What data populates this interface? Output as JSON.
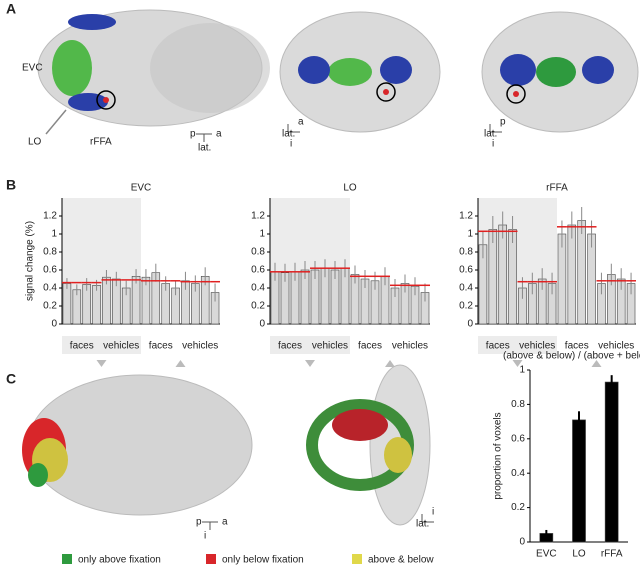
{
  "panel_labels": [
    "A",
    "B",
    "C"
  ],
  "panel_a": {
    "region_labels": [
      "EVC",
      "LO",
      "rFFA"
    ],
    "orientations": [
      [
        "p",
        "a",
        "lat."
      ],
      [
        "lat.",
        "a",
        "i"
      ],
      [
        "lat.",
        "p",
        "i"
      ]
    ]
  },
  "panel_c": {
    "orientations": [
      [
        "p",
        "a",
        "i"
      ],
      [
        "lat.",
        "i"
      ]
    ],
    "legend": [
      {
        "label": "only above fixation",
        "color": "#2e9a3e"
      },
      {
        "label": "only below fixation",
        "color": "#d8262a"
      },
      {
        "label": "above & below",
        "color": "#e0d84a"
      }
    ]
  },
  "chart_data": [
    {
      "type": "bar",
      "title": "EVC",
      "ylabel": "signal change (%)",
      "group_labels": [
        "faces",
        "vehicles",
        "faces",
        "vehicles"
      ],
      "values": [
        0.45,
        0.38,
        0.44,
        0.43,
        0.52,
        0.5,
        0.4,
        0.53,
        0.52,
        0.57,
        0.45,
        0.4,
        0.48,
        0.45,
        0.53,
        0.35
      ],
      "errors": [
        0.06,
        0.06,
        0.07,
        0.06,
        0.08,
        0.08,
        0.08,
        0.08,
        0.09,
        0.1,
        0.08,
        0.08,
        0.1,
        0.09,
        0.1,
        0.1
      ],
      "fit": [
        0.46,
        0.46,
        0.46,
        0.46,
        0.49,
        0.49,
        0.49,
        0.49,
        0.48,
        0.48,
        0.48,
        0.48,
        0.47,
        0.47,
        0.47,
        0.47
      ],
      "color": "#d9d9d9",
      "fit_color": "#e02020",
      "ylim": [
        0,
        1.4
      ],
      "yticks": [
        0,
        0.2,
        0.4,
        0.6,
        0.8,
        1,
        1.2
      ]
    },
    {
      "type": "bar",
      "title": "LO",
      "group_labels": [
        "faces",
        "vehicles",
        "faces",
        "vehicles"
      ],
      "values": [
        0.58,
        0.57,
        0.58,
        0.6,
        0.6,
        0.62,
        0.6,
        0.62,
        0.55,
        0.5,
        0.48,
        0.53,
        0.4,
        0.45,
        0.42,
        0.35
      ],
      "errors": [
        0.1,
        0.1,
        0.1,
        0.1,
        0.1,
        0.1,
        0.1,
        0.1,
        0.1,
        0.1,
        0.1,
        0.1,
        0.1,
        0.1,
        0.1,
        0.1
      ],
      "fit": [
        0.58,
        0.58,
        0.58,
        0.58,
        0.62,
        0.62,
        0.62,
        0.62,
        0.53,
        0.53,
        0.53,
        0.53,
        0.43,
        0.43,
        0.43,
        0.43
      ],
      "color": "#d9d9d9",
      "fit_color": "#e02020",
      "ylim": [
        0,
        1.4
      ],
      "yticks": [
        0,
        0.2,
        0.4,
        0.6,
        0.8,
        1,
        1.2
      ]
    },
    {
      "type": "bar",
      "title": "rFFA",
      "group_labels": [
        "faces",
        "vehicles",
        "faces",
        "vehicles"
      ],
      "values": [
        0.88,
        1.05,
        1.1,
        1.05,
        0.4,
        0.45,
        0.5,
        0.45,
        1.0,
        1.1,
        1.15,
        1.0,
        0.45,
        0.55,
        0.5,
        0.45
      ],
      "errors": [
        0.15,
        0.15,
        0.15,
        0.15,
        0.12,
        0.12,
        0.12,
        0.12,
        0.15,
        0.15,
        0.15,
        0.15,
        0.12,
        0.12,
        0.12,
        0.12
      ],
      "fit": [
        1.03,
        1.03,
        1.03,
        1.03,
        0.47,
        0.47,
        0.47,
        0.47,
        1.08,
        1.08,
        1.08,
        1.08,
        0.48,
        0.48,
        0.48,
        0.48
      ],
      "color": "#d9d9d9",
      "fit_color": "#e02020",
      "ylim": [
        0,
        1.4
      ],
      "yticks": [
        0,
        0.2,
        0.4,
        0.6,
        0.8,
        1,
        1.2
      ]
    },
    {
      "type": "bar",
      "title": "(above & below) / (above + below)",
      "ylabel": "proportion of voxels",
      "categories": [
        "EVC",
        "LO",
        "rFFA"
      ],
      "values": [
        0.05,
        0.71,
        0.93
      ],
      "errors": [
        0.02,
        0.05,
        0.04
      ],
      "color": "#000000",
      "ylim": [
        0,
        1
      ],
      "yticks": [
        0,
        0.2,
        0.4,
        0.6,
        0.8,
        1
      ]
    }
  ]
}
